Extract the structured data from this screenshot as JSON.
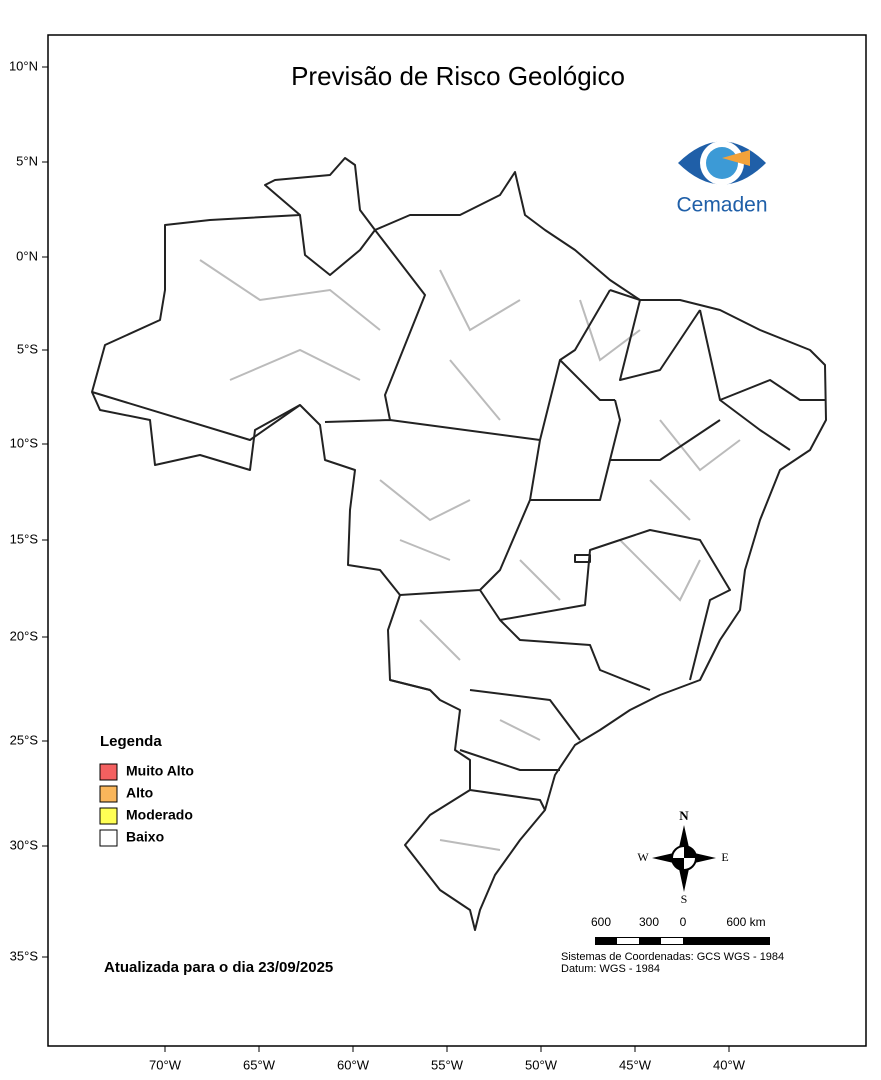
{
  "title": "Previsão de Risco Geológico",
  "logo": {
    "text": "Cemaden"
  },
  "lat_labels": [
    "10°N",
    "5°N",
    "0°N",
    "5°S",
    "10°S",
    "15°S",
    "20°S",
    "25°S",
    "30°S",
    "35°S"
  ],
  "lon_labels": [
    "70°W",
    "65°W",
    "60°W",
    "55°W",
    "50°W",
    "45°W",
    "40°W"
  ],
  "legend": {
    "title": "Legenda",
    "items": [
      {
        "label": "Muito Alto",
        "color": "#f36060"
      },
      {
        "label": "Alto",
        "color": "#f9b65b"
      },
      {
        "label": "Moderado",
        "color": "#ffff55"
      },
      {
        "label": "Baixo",
        "color": "#ffffff"
      }
    ]
  },
  "compass": {
    "n": "N",
    "s": "S",
    "w": "W",
    "e": "E"
  },
  "scale_labels": [
    "600",
    "300",
    "0",
    "600 km"
  ],
  "notes": [
    "Sistemas de Coordenadas: GCS WGS - 1984",
    "Datum: WGS - 1984"
  ],
  "updated": "Atualizada para o dia 23/09/2025"
}
